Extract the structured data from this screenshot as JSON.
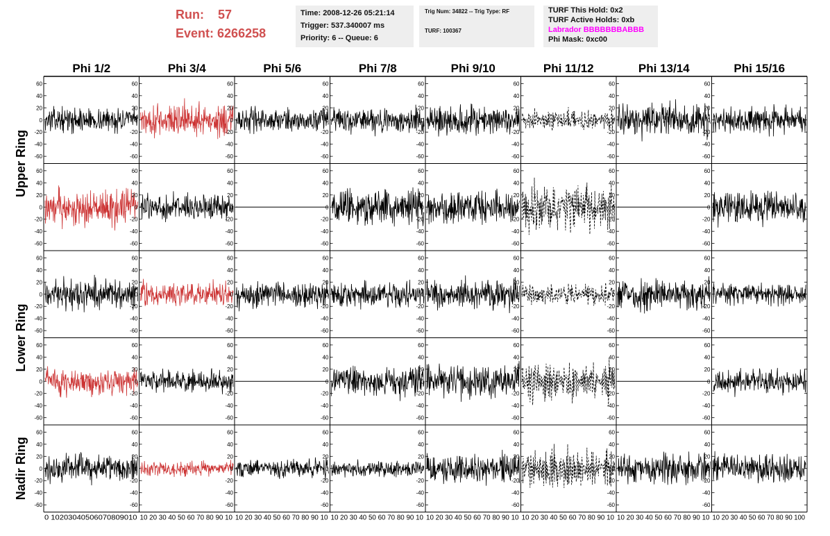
{
  "header": {
    "run_label": "Run:",
    "run_value": "57",
    "event_label": "Event:",
    "event_value": "6266258",
    "time": "Time: 2008-12-26 05:21:14",
    "trigger": "Trigger: 537.340007 ms",
    "priority": "Priority: 6 -- Queue: 6",
    "trig_num": "Trig Num: 34822 -- Trig Type: RF",
    "turf": "TURF: 100367",
    "turf_hold": "TURF This Hold: 0x2",
    "turf_active": "TURF Active Holds: 0xb",
    "labrador": "Labrador BBBBBBBABBB",
    "phi_mask": "Phi Mask: 0xc00"
  },
  "colors": {
    "title_red": "#d05050",
    "trace_red": "#cc3333",
    "trace_black": "#000000",
    "labrador_magenta": "#ff00ff",
    "box_bg": "#eeeeee"
  },
  "chart_data": {
    "type": "line",
    "columns": [
      "Phi 1/2",
      "Phi 3/4",
      "Phi 5/6",
      "Phi 7/8",
      "Phi 9/10",
      "Phi 11/12",
      "Phi 13/14",
      "Phi 15/16"
    ],
    "rows": [
      "Upper Ring",
      "Lower Ring",
      "Nadir Ring"
    ],
    "xlim": [
      0,
      100
    ],
    "ylim": [
      -65,
      65
    ],
    "y_ticks": [
      60,
      40,
      20,
      0,
      -20,
      -40,
      -60
    ],
    "x_tick_labels": [
      "0",
      "10",
      "20",
      "30",
      "40",
      "50",
      "60",
      "70",
      "80",
      "90",
      "100"
    ],
    "x_tick_strip": [
      "0 10203040506070809010",
      "10 20 30 40 50 60 70 80 90 10",
      "10 20 30 40 50 60 70 80 90 10",
      "10 20 30 40 50 60 70 80 90 10",
      "10 20 30 40 50 60 70 80 90 10",
      "10 20 30 40 50 60 70 80 90 10",
      "10 20 30 40 50 60 70 80 90 10",
      "10 20 30 40 50 60 70 80 90 100"
    ],
    "panels": [
      {
        "row": 0,
        "col": 0,
        "style": "black",
        "amp": 14
      },
      {
        "row": 0,
        "col": 1,
        "style": "red",
        "amp": 20
      },
      {
        "row": 0,
        "col": 2,
        "style": "black",
        "amp": 14
      },
      {
        "row": 0,
        "col": 3,
        "style": "black",
        "amp": 15
      },
      {
        "row": 0,
        "col": 4,
        "style": "black",
        "amp": 18
      },
      {
        "row": 0,
        "col": 5,
        "style": "dashed",
        "amp": 13
      },
      {
        "row": 0,
        "col": 6,
        "style": "black",
        "amp": 20
      },
      {
        "row": 0,
        "col": 7,
        "style": "black",
        "amp": 16
      },
      {
        "row": 1,
        "col": 0,
        "style": "red",
        "amp": 22
      },
      {
        "row": 1,
        "col": 1,
        "style": "black",
        "amp": 15
      },
      {
        "row": 1,
        "col": 2,
        "style": "flat",
        "amp": 0
      },
      {
        "row": 1,
        "col": 3,
        "style": "black",
        "amp": 22
      },
      {
        "row": 1,
        "col": 4,
        "style": "black",
        "amp": 20
      },
      {
        "row": 1,
        "col": 5,
        "style": "dashed",
        "amp": 30
      },
      {
        "row": 1,
        "col": 6,
        "style": "flat",
        "amp": 0
      },
      {
        "row": 1,
        "col": 7,
        "style": "black",
        "amp": 20
      },
      {
        "row": 2,
        "col": 0,
        "style": "black",
        "amp": 18
      },
      {
        "row": 2,
        "col": 1,
        "style": "red",
        "amp": 14
      },
      {
        "row": 2,
        "col": 2,
        "style": "black",
        "amp": 16
      },
      {
        "row": 2,
        "col": 3,
        "style": "black",
        "amp": 15
      },
      {
        "row": 2,
        "col": 4,
        "style": "black",
        "amp": 18
      },
      {
        "row": 2,
        "col": 5,
        "style": "dashed",
        "amp": 14
      },
      {
        "row": 2,
        "col": 6,
        "style": "black",
        "amp": 18
      },
      {
        "row": 2,
        "col": 7,
        "style": "black",
        "amp": 13
      },
      {
        "row": 3,
        "col": 0,
        "style": "red",
        "amp": 16
      },
      {
        "row": 3,
        "col": 1,
        "style": "black",
        "amp": 13
      },
      {
        "row": 3,
        "col": 2,
        "style": "flat",
        "amp": 0
      },
      {
        "row": 3,
        "col": 3,
        "style": "black",
        "amp": 18
      },
      {
        "row": 3,
        "col": 4,
        "style": "black",
        "amp": 20
      },
      {
        "row": 3,
        "col": 5,
        "style": "dashed",
        "amp": 26
      },
      {
        "row": 3,
        "col": 6,
        "style": "flat",
        "amp": 0
      },
      {
        "row": 3,
        "col": 7,
        "style": "black",
        "amp": 14
      },
      {
        "row": 4,
        "col": 0,
        "style": "black",
        "amp": 16
      },
      {
        "row": 4,
        "col": 1,
        "style": "red",
        "amp": 9
      },
      {
        "row": 4,
        "col": 2,
        "style": "black",
        "amp": 11
      },
      {
        "row": 4,
        "col": 3,
        "style": "black",
        "amp": 10
      },
      {
        "row": 4,
        "col": 4,
        "style": "black",
        "amp": 18
      },
      {
        "row": 4,
        "col": 5,
        "style": "dashed",
        "amp": 26
      },
      {
        "row": 4,
        "col": 6,
        "style": "black",
        "amp": 17
      },
      {
        "row": 4,
        "col": 7,
        "style": "black",
        "amp": 16
      }
    ]
  }
}
